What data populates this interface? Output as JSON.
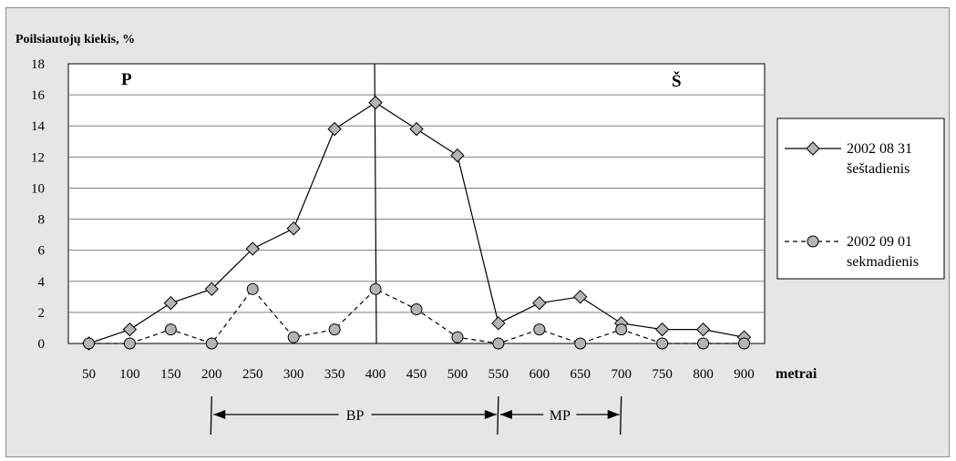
{
  "chart_data": {
    "type": "line",
    "title": "",
    "ylabel": "Poilsiautojų kiekis, %",
    "xlabel": "metrai",
    "ylim": [
      0,
      18
    ],
    "yticks": [
      0,
      2,
      4,
      6,
      8,
      10,
      12,
      14,
      16,
      18
    ],
    "grid": "horizontal",
    "categories": [
      "50",
      "100",
      "150",
      "200",
      "250",
      "300",
      "350",
      "400",
      "450",
      "500",
      "550",
      "600",
      "650",
      "700",
      "750",
      "800",
      "900"
    ],
    "series": [
      {
        "name_line1": "2002 08 31",
        "name_line2": "šeštadienis",
        "marker": "diamond",
        "line_style": "solid",
        "values": [
          0.0,
          0.9,
          2.6,
          3.5,
          6.1,
          7.4,
          13.8,
          15.5,
          13.8,
          12.1,
          1.3,
          2.6,
          3.0,
          1.3,
          0.9,
          0.9,
          0.4
        ]
      },
      {
        "name_line1": "2002 09 01",
        "name_line2": "sekmadienis",
        "marker": "circle",
        "line_style": "dashed",
        "values": [
          0.0,
          0.0,
          0.9,
          0.0,
          3.5,
          0.4,
          0.9,
          3.5,
          2.2,
          0.4,
          0.0,
          0.9,
          0.0,
          0.9,
          0.0,
          0.0,
          0.0
        ]
      }
    ],
    "annotations": {
      "left_letter": "P",
      "right_letter": "Š",
      "divider_at_category": "400",
      "spans": [
        {
          "label": "BP",
          "from": "200",
          "to": "550"
        },
        {
          "label": "MP",
          "from": "550",
          "to": "700"
        }
      ]
    },
    "legend_position": "right",
    "colors": {
      "background": "#e6e6e6",
      "plot": "#ffffff",
      "line": "#000000",
      "marker_fill": "#b4b4b4",
      "grid": "#808080"
    }
  }
}
